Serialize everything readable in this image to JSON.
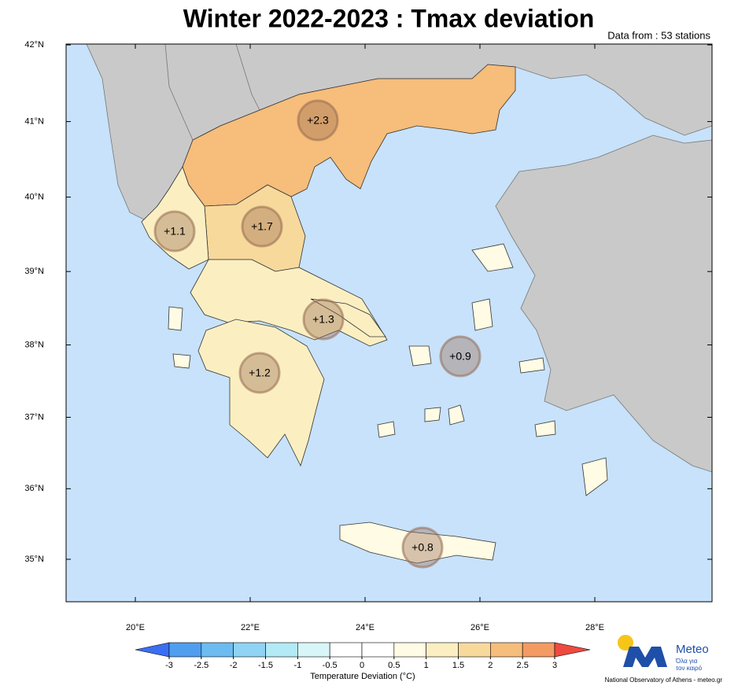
{
  "title": "Winter 2022-2023 : Tmax deviation",
  "subtitle": "Data from : 53 stations",
  "map": {
    "lat_ticks": [
      {
        "value": 42,
        "label": "42°N"
      },
      {
        "value": 41,
        "label": "41°N"
      },
      {
        "value": 40,
        "label": "40°N"
      },
      {
        "value": 39,
        "label": "39°N"
      },
      {
        "value": 38,
        "label": "38°N"
      },
      {
        "value": 37,
        "label": "37°N"
      },
      {
        "value": 36,
        "label": "36°N"
      },
      {
        "value": 35,
        "label": "35°N"
      }
    ],
    "lon_ticks": [
      {
        "value": 20,
        "label": "20°E"
      },
      {
        "value": 22,
        "label": "22°E"
      },
      {
        "value": 24,
        "label": "24°E"
      },
      {
        "value": 26,
        "label": "26°E"
      },
      {
        "value": 28,
        "label": "28°E"
      }
    ],
    "regions": [
      {
        "value": 2.3,
        "label": "+2.3"
      },
      {
        "value": 1.7,
        "label": "+1.7"
      },
      {
        "value": 1.1,
        "label": "+1.1"
      },
      {
        "value": 1.3,
        "label": "+1.3"
      },
      {
        "value": 1.2,
        "label": "+1.2"
      },
      {
        "value": 0.9,
        "label": "+0.9"
      },
      {
        "value": 0.8,
        "label": "+0.8"
      }
    ]
  },
  "colorbar": {
    "ticks": [
      -3,
      -2.5,
      -2,
      -1.5,
      -1,
      -0.5,
      0,
      0.5,
      1,
      1.5,
      2,
      2.5,
      3
    ],
    "colors": [
      "#3b6ff2",
      "#4f9ef0",
      "#6cbbf1",
      "#8fd4f4",
      "#b2eaf6",
      "#d8f6f8",
      "#ffffff",
      "#ffffff",
      "#fffbe4",
      "#fbefc2",
      "#f8d99c",
      "#f6bd7b",
      "#f39b63",
      "#ef4a40"
    ],
    "label": "Temperature Deviation (°C)"
  },
  "logo": {
    "name": "Meteo",
    "tagline_1": "Όλα για",
    "tagline_2": "τον καιρό"
  },
  "credit": "National Observatory of Athens - meteo.gr"
}
